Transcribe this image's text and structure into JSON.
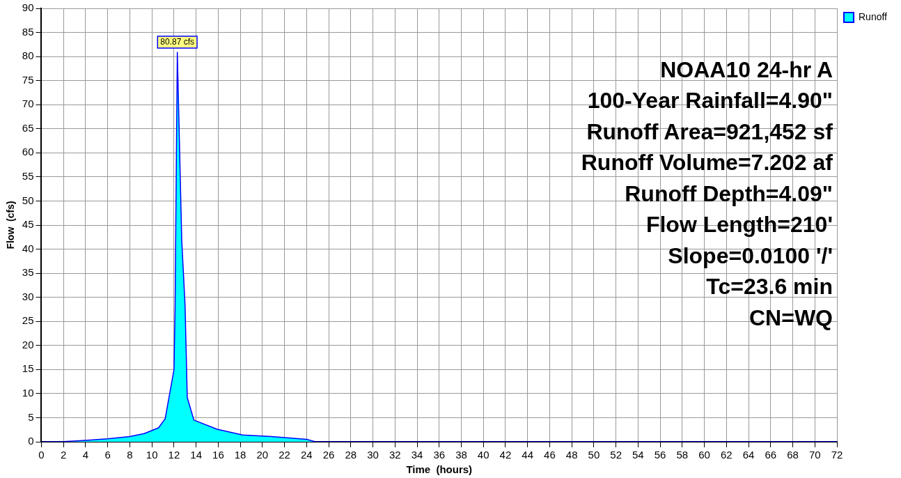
{
  "chart_data": {
    "type": "area",
    "xlabel": "Time  (hours)",
    "ylabel": "Flow  (cfs)",
    "series": [
      {
        "name": "Runoff",
        "color": "#00ffff",
        "x": [
          0,
          2,
          4,
          6,
          8,
          9.3,
          10.6,
          11.2,
          12.0,
          12.1,
          12.2,
          12.3,
          12.7,
          13.0,
          13.2,
          13.8,
          15.9,
          18.2,
          20.8,
          24,
          24.8,
          72
        ],
        "values": [
          0,
          0.05,
          0.3,
          0.6,
          1.1,
          1.7,
          2.9,
          4.8,
          15,
          28,
          55,
          80.87,
          41.8,
          28.4,
          9.2,
          4.5,
          2.6,
          1.4,
          1.1,
          0.5,
          0,
          0
        ]
      }
    ],
    "xlim": [
      0,
      72
    ],
    "xticks": [
      0,
      2,
      4,
      6,
      8,
      10,
      12,
      14,
      16,
      18,
      20,
      22,
      24,
      26,
      28,
      30,
      32,
      34,
      36,
      38,
      40,
      42,
      44,
      46,
      48,
      50,
      52,
      54,
      56,
      58,
      60,
      62,
      64,
      66,
      68,
      70,
      72
    ],
    "ylim": [
      0,
      90
    ],
    "yticks": [
      0,
      5,
      10,
      15,
      20,
      25,
      30,
      35,
      40,
      45,
      50,
      55,
      60,
      65,
      70,
      75,
      80,
      85,
      90
    ],
    "grid": true,
    "legend": "top right",
    "annotations": [
      {
        "text": "80.87 cfs",
        "x": 12.3,
        "y": 80.87
      },
      "NOAA10 24-hr A",
      "100-Year Rainfall=4.90\"",
      "Runoff Area=921,452 sf",
      "Runoff Volume=7.202 af",
      "Runoff Depth=4.09\"",
      "Flow Length=210'",
      "Slope=0.0100 '/'",
      "Tc=23.6 min",
      "CN=WQ"
    ]
  }
}
